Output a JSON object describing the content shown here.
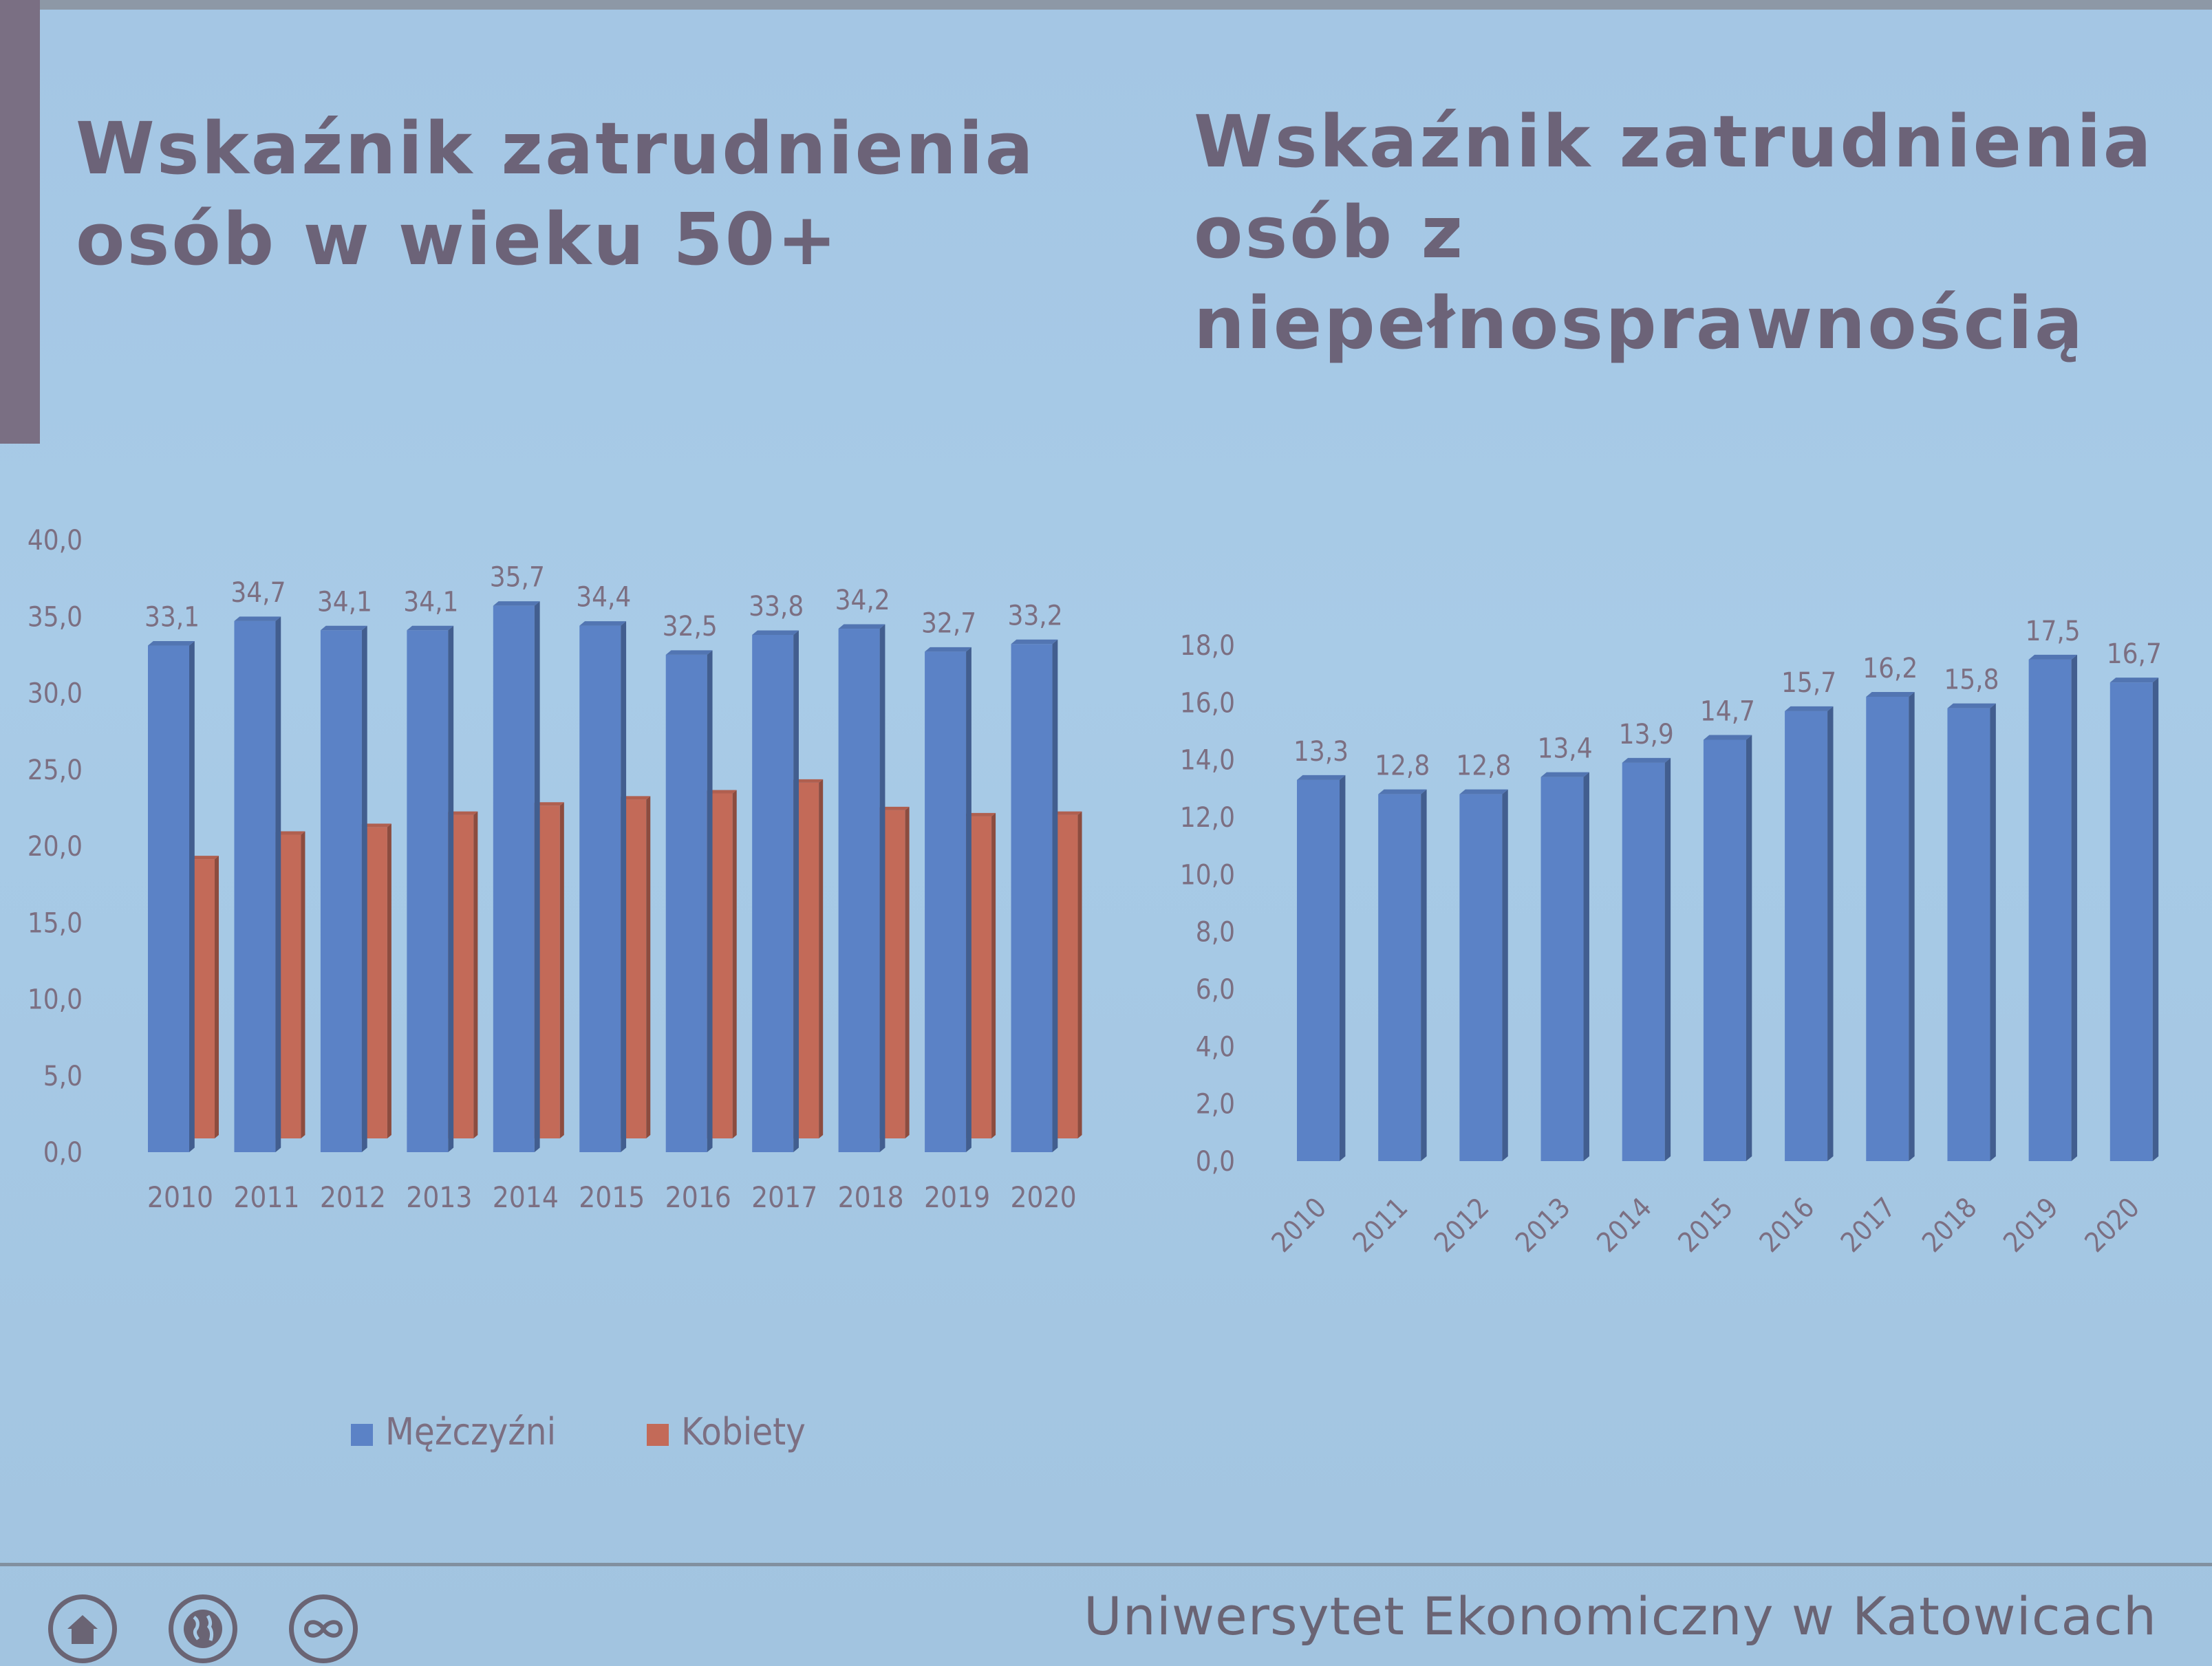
{
  "titles": {
    "left": "Wskaźnik zatrudnienia osób w wieku 50+",
    "right": "Wskaźnik zatrudnienia osób z niepełnosprawnością"
  },
  "footer": {
    "institution": "Uniwersytet Ekonomiczny w Katowicach",
    "icons": [
      "home-icon",
      "globe-icon",
      "infinity-icon"
    ]
  },
  "colors": {
    "men": "#5b82c6",
    "women": "#c36a58",
    "text": "#6c6378",
    "background": "#a6c8e5"
  },
  "chart_data": [
    {
      "type": "bar",
      "title": "Wskaźnik zatrudnienia osób w wieku 50+",
      "categories": [
        "2010",
        "2011",
        "2012",
        "2013",
        "2014",
        "2015",
        "2016",
        "2017",
        "2018",
        "2019",
        "2020"
      ],
      "series": [
        {
          "name": "Mężczyźni",
          "color": "#5b82c6",
          "values": [
            33.1,
            34.7,
            34.1,
            34.1,
            35.7,
            34.4,
            32.5,
            33.8,
            34.2,
            32.7,
            33.2
          ],
          "labels": [
            "33,1",
            "34,7",
            "34,1",
            "34,1",
            "35,7",
            "34,4",
            "32,5",
            "33,8",
            "34,2",
            "32,7",
            "33,2"
          ]
        },
        {
          "name": "Kobiety",
          "color": "#c36a58",
          "values": [
            19.5,
            21.1,
            21.6,
            22.4,
            23.0,
            23.4,
            23.8,
            24.5,
            22.7,
            22.3,
            22.4
          ]
        }
      ],
      "yticks": [
        "0,0",
        "5,0",
        "10,0",
        "15,0",
        "20,0",
        "25,0",
        "30,0",
        "35,0",
        "40,0"
      ],
      "ylim": [
        0,
        40
      ],
      "legend": [
        "Mężczyźni",
        "Kobiety"
      ],
      "legend_position": "bottom"
    },
    {
      "type": "bar",
      "title": "Wskaźnik zatrudnienia osób z niepełnosprawnością",
      "categories": [
        "2010",
        "2011",
        "2012",
        "2013",
        "2014",
        "2015",
        "2016",
        "2017",
        "2018",
        "2019",
        "2020"
      ],
      "series": [
        {
          "color": "#5b82c6",
          "values": [
            13.3,
            12.8,
            12.8,
            13.4,
            13.9,
            14.7,
            15.7,
            16.2,
            15.8,
            17.5,
            16.7
          ],
          "labels": [
            "13,3",
            "12,8",
            "12,8",
            "13,4",
            "13,9",
            "14,7",
            "15,7",
            "16,2",
            "15,8",
            "17,5",
            "16,7"
          ]
        }
      ],
      "yticks": [
        "0,0",
        "2,0",
        "4,0",
        "6,0",
        "8,0",
        "10,0",
        "12,0",
        "14,0",
        "16,0",
        "18,0"
      ],
      "ylim": [
        0,
        18
      ],
      "xtick_rotation": "diagonal"
    }
  ]
}
